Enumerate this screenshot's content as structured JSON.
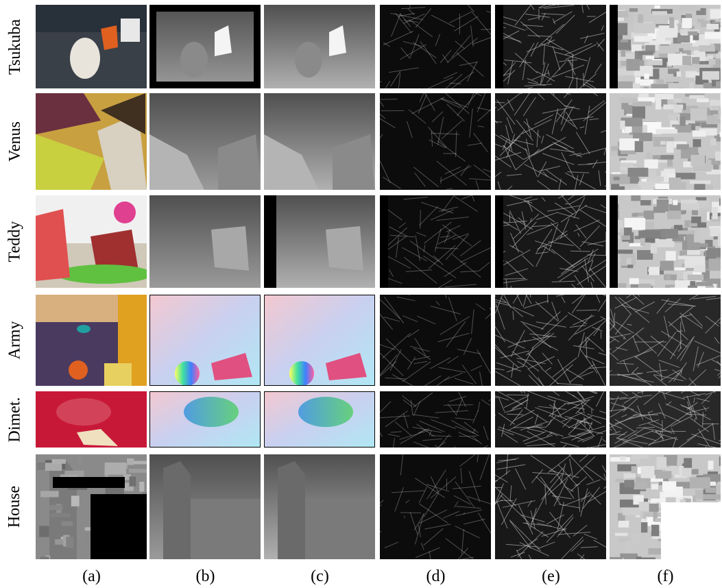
{
  "figure": {
    "rows": [
      {
        "label": "Tsukuba",
        "kind": "gray"
      },
      {
        "label": "Venus",
        "kind": "gray"
      },
      {
        "label": "Teddy",
        "kind": "gray"
      },
      {
        "label": "Army",
        "kind": "flow"
      },
      {
        "label": "Dimet.",
        "kind": "flow"
      },
      {
        "label": "House",
        "kind": "gray"
      }
    ],
    "columns": [
      {
        "label": "(a)",
        "content": "input-image-panel"
      },
      {
        "label": "(b)",
        "content": "ground-truth-panel"
      },
      {
        "label": "(c)",
        "content": "estimate-panel"
      },
      {
        "label": "(d)",
        "content": "error-map-panel"
      },
      {
        "label": "(e)",
        "content": "error-map-panel"
      },
      {
        "label": "(f)",
        "content": "error-map-panel"
      }
    ],
    "colors": {
      "background": "#ffffff",
      "tsukuba_bg": "#3a4048",
      "venus_bg": "#c8a040",
      "teddy_bg": "#d0c8b8",
      "army_bg": "#4a3a60",
      "dimet_bg": "#c81838",
      "house_bg": "#8a8a8a"
    }
  }
}
